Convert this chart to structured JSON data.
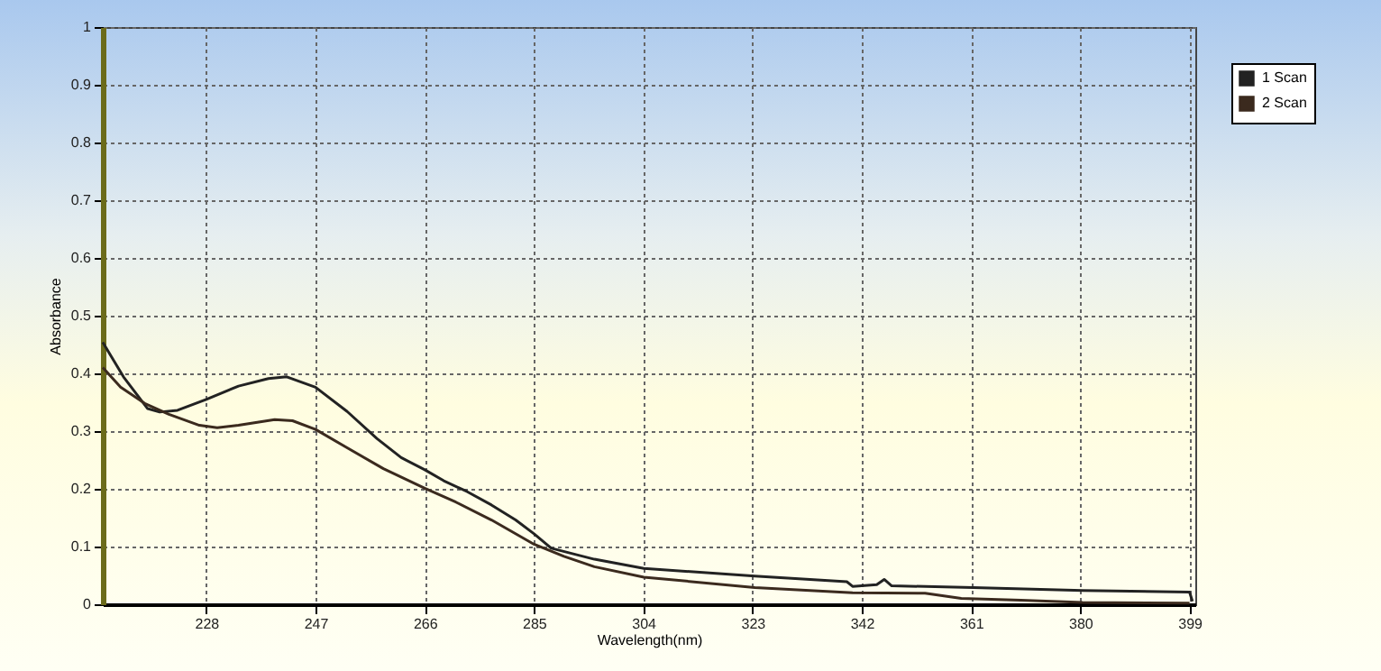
{
  "chart_data": {
    "type": "line",
    "xlabel": "Wavelength(nm)",
    "ylabel": "Absorbance",
    "xlim": [
      210,
      400
    ],
    "xticks": [
      228,
      247,
      266,
      285,
      304,
      323,
      342,
      361,
      380,
      399
    ],
    "ylim": [
      0,
      1
    ],
    "yticks": [
      {
        "value": 0,
        "label": "0"
      },
      0.1,
      0.2,
      0.3,
      0.4,
      0.5,
      0.6,
      0.7,
      0.8,
      0.9,
      {
        "value": 1,
        "label": "1"
      }
    ],
    "grid": true,
    "legend": "top right",
    "line_style": "solid",
    "marker": "none",
    "series": [
      {
        "name": "1 Scan",
        "color": "#222222",
        "x": [
          210,
          213.6,
          217.8,
          219.9,
          223,
          228,
          233.6,
          238.8,
          242,
          247,
          252.5,
          257.7,
          261.9,
          266,
          269.3,
          273.4,
          277.6,
          281.8,
          285,
          288,
          295.5,
          304.1,
          323.4,
          339.4,
          340.4,
          344.6,
          345.9,
          347.2,
          361.4,
          380.4,
          399,
          399.5
        ],
        "values": [
          0.454,
          0.394,
          0.339,
          0.333,
          0.336,
          0.355,
          0.378,
          0.391,
          0.394,
          0.376,
          0.334,
          0.287,
          0.254,
          0.233,
          0.214,
          0.195,
          0.172,
          0.146,
          0.122,
          0.097,
          0.078,
          0.062,
          0.049,
          0.039,
          0.031,
          0.034,
          0.043,
          0.032,
          0.029,
          0.024,
          0.021,
          0.005
        ]
      },
      {
        "name": "2 Scan",
        "color": "#3b2a1e",
        "x": [
          210,
          213.1,
          217.3,
          221.5,
          226.8,
          229.9,
          233.6,
          239.9,
          243,
          247,
          252.5,
          258.8,
          266,
          271.4,
          277.6,
          285,
          290.2,
          295.5,
          304.1,
          323.4,
          340.4,
          353,
          359.3,
          369.7,
          380.4,
          399
        ],
        "values": [
          0.41,
          0.376,
          0.348,
          0.329,
          0.31,
          0.306,
          0.31,
          0.32,
          0.318,
          0.303,
          0.271,
          0.235,
          0.201,
          0.177,
          0.146,
          0.104,
          0.083,
          0.065,
          0.047,
          0.029,
          0.02,
          0.019,
          0.01,
          0.007,
          0.003,
          0.002
        ]
      }
    ]
  }
}
